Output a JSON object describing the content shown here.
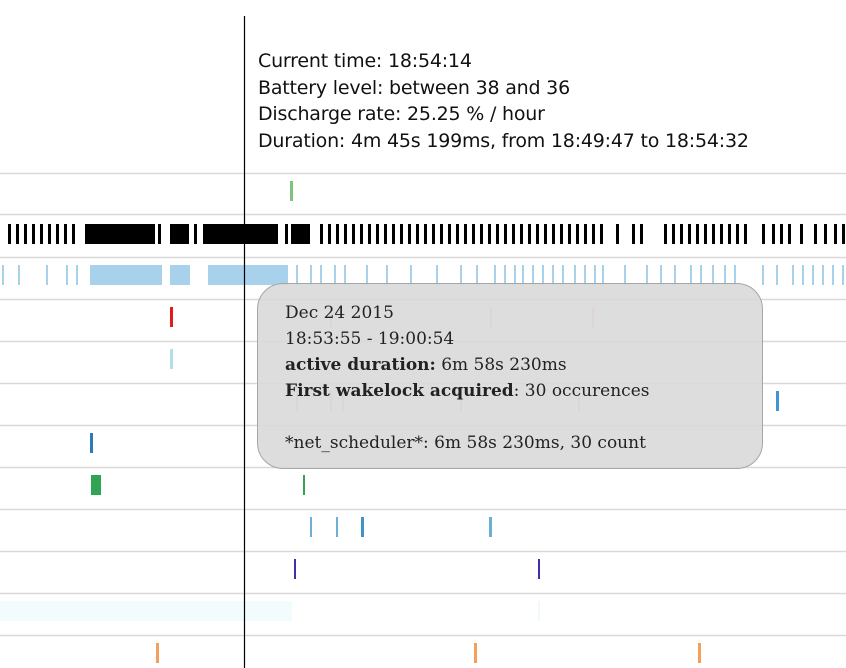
{
  "info": {
    "current_time": "Current time: 18:54:14",
    "battery_level": "Battery level: between 38 and 36",
    "discharge_rate": "Discharge rate: 25.25 % / hour",
    "duration": "Duration: 4m 45s 199ms, from 18:49:47 to 18:54:32"
  },
  "tooltip": {
    "date": "Dec 24 2015",
    "time_range": "18:53:55 - 19:00:54",
    "active_duration_label": "active duration:",
    "active_duration_value": " 6m 58s 230ms",
    "first_wakelock_label": "First wakelock acquired",
    "first_wakelock_value": ": 30 occurences",
    "net_scheduler": "*net_scheduler*: 6m 58s 230ms, 30 count"
  },
  "colors": {
    "screen_bar": "#000000",
    "wakelock_bar": "#a8d1ec",
    "cursor_line": "#000000",
    "row_divider": "#d9d9d9"
  }
}
